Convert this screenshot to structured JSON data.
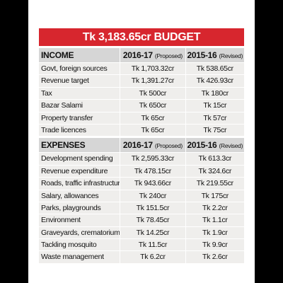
{
  "title": "Tk 3,183.65cr BUDGET",
  "sections": [
    {
      "header": {
        "label": "INCOME",
        "col1": {
          "year": "2016-17",
          "note": "(Proposed)"
        },
        "col2": {
          "year": "2015-16",
          "note": "(Revised)"
        }
      },
      "rows": [
        [
          "Govt, foreign sources",
          "Tk 1,703.32cr",
          "Tk 538.65cr"
        ],
        [
          "Revenue target",
          "Tk 1,391.27cr",
          "Tk 426.93cr"
        ],
        [
          "Tax",
          "Tk 500cr",
          "Tk 180cr"
        ],
        [
          "Bazar Salami",
          "Tk 650cr",
          "Tk 15cr"
        ],
        [
          "Property transfer",
          "Tk 65cr",
          "Tk 57cr"
        ],
        [
          "Trade licences",
          "Tk 65cr",
          "Tk 75cr"
        ]
      ]
    },
    {
      "header": {
        "label": "EXPENSES",
        "col1": {
          "year": "2016-17",
          "note": "(Proposed)"
        },
        "col2": {
          "year": "2015-16",
          "note": "(Revised)"
        }
      },
      "rows": [
        [
          "Development spending",
          "Tk 2,595.33cr",
          "Tk 613.3cr"
        ],
        [
          "Revenue expenditure",
          "Tk 478.15cr",
          "Tk 324.6cr"
        ],
        [
          "Roads, traffic infrastructure",
          "Tk 943.66cr",
          "Tk 219.55cr"
        ],
        [
          "Salary, allowances",
          "Tk 240cr",
          "Tk 175cr"
        ],
        [
          "Parks, playgrounds",
          "Tk 151.5cr",
          "Tk 2.2cr"
        ],
        [
          "Environment",
          "Tk 78.45cr",
          "Tk 1.1cr"
        ],
        [
          "Graveyards, crematoriums",
          "Tk 14.25cr",
          "Tk 1.9cr"
        ],
        [
          "Tackling mosquito",
          "Tk 11.5cr",
          "Tk 9.9cr"
        ],
        [
          "Waste management",
          "Tk 6.2cr",
          "Tk 2.6cr"
        ]
      ]
    }
  ]
}
